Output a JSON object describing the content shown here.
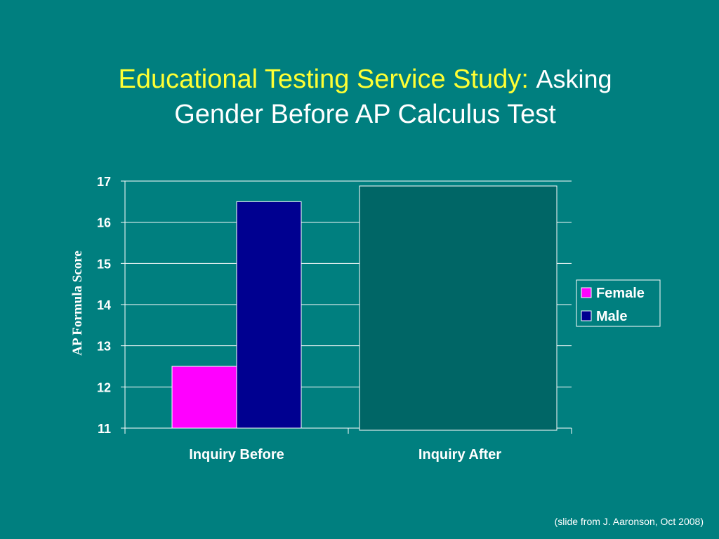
{
  "slide": {
    "title_part1": "Educational Testing Service Study:",
    "title_part2": "Asking",
    "title_part3": "Gender Before AP Calculus Test",
    "credit": "(slide from J. Aaronson, Oct 2008)"
  },
  "chart_data": {
    "type": "bar",
    "categories": [
      "Inquiry Before",
      "Inquiry After"
    ],
    "series": [
      {
        "name": "Female",
        "values": [
          12.5,
          null
        ],
        "color": "#ff00ff"
      },
      {
        "name": "Male",
        "values": [
          16.5,
          null
        ],
        "color": "#000090"
      }
    ],
    "ylabel": "AP  Formula Score",
    "ylim": [
      11,
      17
    ],
    "yticks": [
      "11",
      "12",
      "13",
      "14",
      "15",
      "16",
      "17"
    ],
    "grid": true,
    "legend_position": "right",
    "cover_box_color": "#006666"
  }
}
